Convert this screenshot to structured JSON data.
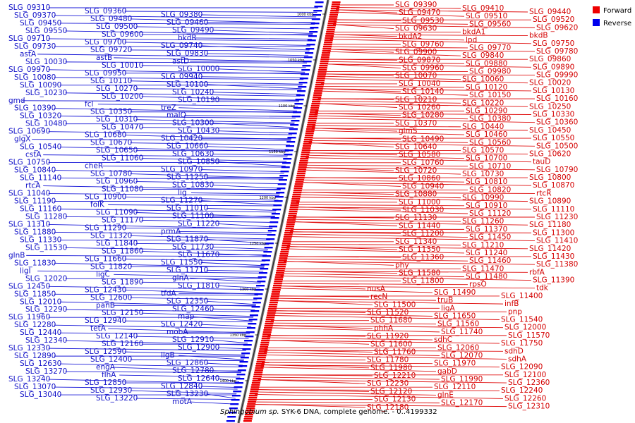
{
  "caption_species": "Sphingobium sp.",
  "caption_rest": " SYK-6 DNA, complete genome. - 0..4199332",
  "legend": [
    {
      "label": "Forward",
      "color": "#ee0000"
    },
    {
      "label": "Reverse",
      "color": "#0000ee"
    }
  ],
  "ticks": [
    "1000 kbp",
    "1050 kbp",
    "1100 kbp",
    "1150 kbp",
    "1200 kbp",
    "1250 kbp",
    "1300 kbp",
    "1350 kbp",
    "1400 kbp"
  ],
  "reverse_labels": [
    "SLG_09310",
    "SLG_09360",
    "SLG_09380",
    "SLG_09370",
    "SLG_09480",
    "SLG_09460",
    "SLG_09450",
    "SLG_09500",
    "SLG_09490",
    "SLG_09550",
    "SLG_09600",
    "bkdR",
    "SLG_09710",
    "SLG_09700",
    "SLG_09740",
    "SLG_09730",
    "SLG_09720",
    "SLG_09830",
    "astA",
    "astB",
    "astD",
    "SLG_10030",
    "SLG_10010",
    "SLG_10000",
    "SLG_09970",
    "SLG_09950",
    "SLG_09940",
    "SLG_10080",
    "SLG_10110",
    "SLG_10100",
    "SLG_10090",
    "SLG_10270",
    "SLG_10240",
    "SLG_10230",
    "SLG_10200",
    "SLG_10190",
    "gmd",
    "fcl",
    "treZ",
    "SLG_10390",
    "SLG_10350",
    "malQ",
    "SLG_10320",
    "SLG_10310",
    "SLG_10300",
    "SLG_10480",
    "SLG_10470",
    "SLG_10430",
    "SLG_10690",
    "SLG_10680",
    "SLG_10420",
    "glgX",
    "SLG_10670",
    "SLG_10660",
    "SLG_10540",
    "SLG_10650",
    "SLG_10630",
    "cstA",
    "SLG_11060",
    "SLG_10850",
    "SLG_10750",
    "cheR",
    "SLG_10970",
    "SLG_10840",
    "SLG_10780",
    "SLG_11250",
    "SLG_11140",
    "SLG_10960",
    "SLG_10830",
    "rtcA",
    "SLG_11080",
    "lig",
    "SLG_11040",
    "SLG_10900",
    "SLG_11270",
    "SLG_11190",
    "folK",
    "SLG_11010",
    "SLG_11160",
    "SLG_11090",
    "SLG_11100",
    "SLG_11280",
    "SLG_11170",
    "SLG_11220",
    "SLG_11310",
    "SLG_11290",
    "prmA",
    "SLG_11880",
    "SLG_11320",
    "SLG_11870",
    "SLG_11330",
    "SLG_11840",
    "SLG_11730",
    "SLG_11530",
    "SLG_11860",
    "SLG_11670",
    "glnB",
    "SLG_11660",
    "SLG_11550",
    "SLG_11830",
    "SLG_11820",
    "SLG_11710",
    "ligI",
    "ligC",
    "glnA",
    "SLG_12020",
    "SLG_11890",
    "SLG_11810",
    "SLG_12450",
    "SLG_12430",
    "tfdA",
    "SLG_11850",
    "SLG_12600",
    "SLG_12350",
    "SLG_12010",
    "panB",
    "SLG_12460",
    "SLG_12290",
    "SLG_12150",
    "map",
    "SLG_11960",
    "SLG_12940",
    "SLG_12420",
    "SLG_12280",
    "tetA",
    "mobA",
    "SLG_12440",
    "SLG_12140",
    "SLG_12910",
    "SLG_12340",
    "SLG_12160",
    "SLG_12900",
    "SLG_12330",
    "SLG_12590",
    "ligB",
    "SLG_12890",
    "SLG_12400",
    "SLG_12860",
    "SLG_12630",
    "engA",
    "SLG_12780",
    "SLG_13270",
    "flhA",
    "SLG_12640",
    "SLG_13240",
    "SLG_12850",
    "SLG_12840",
    "SLG_13070",
    "SLG_12930",
    "SLG_13230",
    "SLG_13040",
    "SLG_13220",
    "motA"
  ],
  "forward_labels": [
    "SLG_09390",
    "SLG_09410",
    "SLG_09440",
    "SLG_09470",
    "SLG_09510",
    "SLG_09520",
    "SLG_09530",
    "SLG_09560",
    "SLG_09620",
    "SLG_09630",
    "bkdA1",
    "bkdB",
    "bkdA2",
    "lpd",
    "SLG_09750",
    "SLG_09760",
    "SLG_09770",
    "SLG_09780",
    "SLG_09900",
    "SLG_09840",
    "SLG_09860",
    "SLG_09870",
    "SLG_09880",
    "SLG_09890",
    "SLG_09960",
    "SLG_09980",
    "SLG_09990",
    "SLG_10070",
    "SLG_10060",
    "SLG_10020",
    "SLG_10040",
    "SLG_10120",
    "SLG_10130",
    "SLG_10140",
    "SLG_10150",
    "SLG_10160",
    "SLG_10210",
    "SLG_10220",
    "SLG_10250",
    "SLG_10260",
    "SLG_10290",
    "SLG_10330",
    "SLG_10280",
    "SLG_10380",
    "SLG_10360",
    "SLG_10370",
    "SLG_10440",
    "SLG_10450",
    "glmS",
    "SLG_10460",
    "SLG_10550",
    "SLG_10490",
    "SLG_10560",
    "SLG_10500",
    "SLG_10640",
    "SLG_10570",
    "SLG_10620",
    "SLG_10580",
    "SLG_10700",
    "tauD",
    "SLG_10760",
    "SLG_10710",
    "SLG_10790",
    "SLG_10720",
    "SLG_10730",
    "SLG_10800",
    "SLG_10860",
    "SLG_10810",
    "SLG_10870",
    "SLG_10940",
    "SLG_10820",
    "rtcR",
    "SLG_10880",
    "SLG_10990",
    "SLG_10890",
    "SLG_11000",
    "SLG_10910",
    "SLG_11110",
    "SLG_11030",
    "SLG_11120",
    "SLG_11230",
    "SLG_11130",
    "SLG_11260",
    "SLG_11180",
    "SLG_11440",
    "SLG_11370",
    "SLG_11300",
    "SLG_11200",
    "SLG_11450",
    "SLG_11410",
    "SLG_11340",
    "SLG_11210",
    "SLG_11420",
    "SLG_11350",
    "SLG_11240",
    "SLG_11430",
    "SLG_11360",
    "SLG_11460",
    "SLG_11380",
    "phy",
    "SLG_11470",
    "rbfA",
    "SLG_11580",
    "SLG_11480",
    "SLG_11390",
    "SLG_11800",
    "rpsO",
    "tdk",
    "nusA",
    "SLG_11490",
    "SLG_11400",
    "recN",
    "truB",
    "infB",
    "SLG_11500",
    "ligA",
    "pnp",
    "SLG_11520",
    "SLG_11650",
    "SLG_11540",
    "SLG_11680",
    "SLG_11560",
    "SLG_12000",
    "phhA",
    "SLG_11740",
    "SLG_11570",
    "SLG_11920",
    "sdhC",
    "SLG_11750",
    "SLG_11600",
    "SLG_12060",
    "sdhD",
    "SLG_11760",
    "SLG_12070",
    "sdhA",
    "SLG_11780",
    "SLG_11970",
    "SLG_12090",
    "SLG_11980",
    "gabD",
    "SLG_12100",
    "SLG_12210",
    "SLG_11990",
    "SLG_12360",
    "SLG_12230",
    "SLG_12110",
    "SLG_12240",
    "SLG_12120",
    "glnE",
    "SLG_12260",
    "SLG_12130",
    "SLG_12170",
    "SLG_12310",
    "SLG_12180"
  ]
}
